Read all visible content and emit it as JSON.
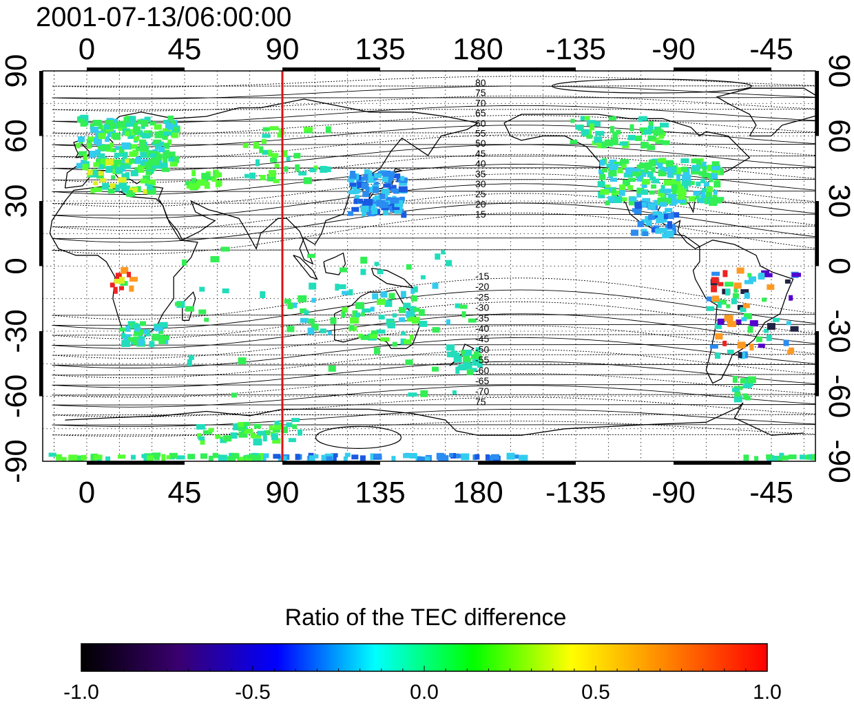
{
  "timestamp": "2001-07-13/06:00:00",
  "x_ticks": [
    "0",
    "45",
    "90",
    "135",
    "180",
    "-135",
    "-90",
    "-45"
  ],
  "y_ticks": [
    "90",
    "60",
    "30",
    "0",
    "-30",
    "-60",
    "-90"
  ],
  "marker_longitude": 90,
  "contour_labels_north": [
    "80",
    "75",
    "70",
    "65",
    "60",
    "55",
    "50",
    "45",
    "40",
    "35",
    "30",
    "25",
    "20",
    "15"
  ],
  "contour_labels_south": [
    "-15",
    "-20",
    "-25",
    "-30",
    "-35",
    "-40",
    "-45",
    "-50",
    "-55",
    "-60",
    "-65",
    "-70",
    "75"
  ],
  "colorbar": {
    "title": "Ratio of the TEC difference",
    "min": -1.0,
    "max": 1.0,
    "tick_labels": [
      "-1.0",
      "-0.5",
      "0.0",
      "0.5",
      "1.0"
    ],
    "colors": [
      "#000000",
      "#3a0070",
      "#0000ff",
      "#00ffff",
      "#00ff00",
      "#ffff00",
      "#ff8000",
      "#ff0000"
    ]
  },
  "colors": {
    "marker_line": "#dd1111",
    "frame": "#000000"
  }
}
